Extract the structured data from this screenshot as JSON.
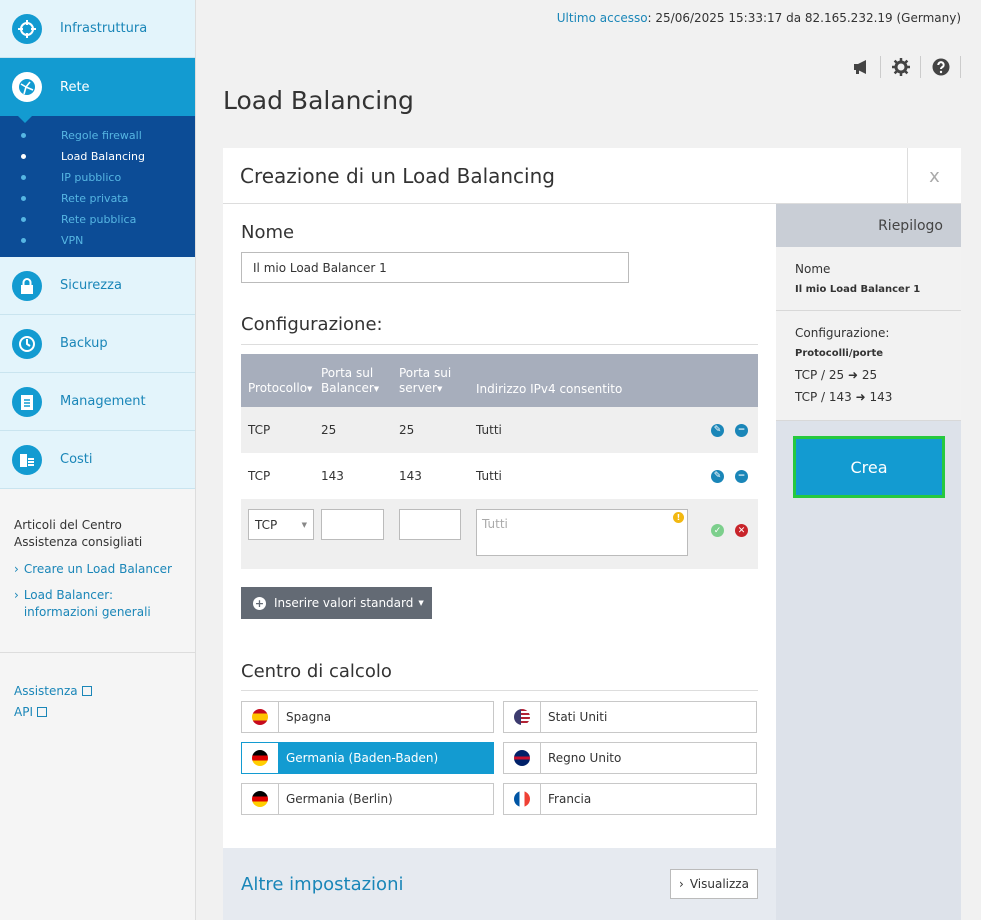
{
  "topbar": {
    "last_access_label": "Ultimo accesso",
    "last_access_value": ": 25/06/2025 15:33:17 da 82.165.232.19 (Germany)"
  },
  "top_icons": [
    "megaphone-icon",
    "gear-icon",
    "help-icon"
  ],
  "sidebar": {
    "items": [
      {
        "label": "Infrastruttura",
        "icon": "infrastructure-icon"
      },
      {
        "label": "Rete",
        "icon": "network-icon"
      },
      {
        "label": "Sicurezza",
        "icon": "lock-icon"
      },
      {
        "label": "Backup",
        "icon": "backup-icon"
      },
      {
        "label": "Management",
        "icon": "clipboard-icon"
      },
      {
        "label": "Costi",
        "icon": "coins-icon"
      }
    ],
    "subitems": [
      "Regole firewall",
      "Load Balancing",
      "IP pubblico",
      "Rete privata",
      "Rete pubblica",
      "VPN"
    ],
    "help_title": "Articoli del Centro Assistenza consigliati",
    "help_links": [
      "Creare un Load Balancer",
      "Load Balancer: informazioni generali"
    ],
    "bottom_links": [
      "Assistenza",
      "API"
    ]
  },
  "page_title": "Load Balancing",
  "panel": {
    "title": "Creazione di un Load Balancing",
    "close": "x",
    "name_section": "Nome",
    "name_value": "Il mio Load Balancer 1",
    "config_section": "Configurazione:",
    "table": {
      "headers": [
        "Protocollo",
        "Porta sul Balancer",
        "Porta sui server",
        "Indirizzo IPv4 consentito"
      ],
      "header_lines": [
        [
          "Protocollo"
        ],
        [
          "Porta sul",
          "Balancer"
        ],
        [
          "Porta sui",
          "server"
        ],
        [
          "Indirizzo IPv4 consentito"
        ]
      ],
      "rows": [
        {
          "protocol": "TCP",
          "balancer_port": "25",
          "server_port": "25",
          "ipv4": "Tutti"
        },
        {
          "protocol": "TCP",
          "balancer_port": "143",
          "server_port": "143",
          "ipv4": "Tutti"
        }
      ],
      "edit_row": {
        "protocol": "TCP",
        "ipv4_placeholder": "Tutti"
      }
    },
    "std_button": "Inserire valori standard",
    "dc_section": "Centro di calcolo",
    "datacenters": [
      {
        "label": "Spagna",
        "flag": "flag-spain-icon",
        "selected": false
      },
      {
        "label": "Stati Uniti",
        "flag": "flag-usa-icon",
        "selected": false
      },
      {
        "label": "Germania (Baden-Baden)",
        "flag": "flag-germany-icon",
        "selected": true
      },
      {
        "label": "Regno Unito",
        "flag": "flag-uk-icon",
        "selected": false
      },
      {
        "label": "Germania (Berlin)",
        "flag": "flag-germany-icon",
        "selected": false
      },
      {
        "label": "Francia",
        "flag": "flag-france-icon",
        "selected": false
      }
    ],
    "other_settings": "Altre impostazioni",
    "view_button": "Visualizza"
  },
  "summary": {
    "title": "Riepilogo",
    "name_label": "Nome",
    "name_value": "Il mio Load Balancer 1",
    "config_label": "Configurazione:",
    "protocols_label": "Protocolli/porte",
    "lines": [
      "TCP / 25 ➜ 25",
      "TCP / 143 ➜ 143"
    ],
    "create_button": "Crea"
  },
  "colors": {
    "primary": "#139bd1",
    "dark_nav": "#0c4c96",
    "accent_border": "#27c93f"
  }
}
